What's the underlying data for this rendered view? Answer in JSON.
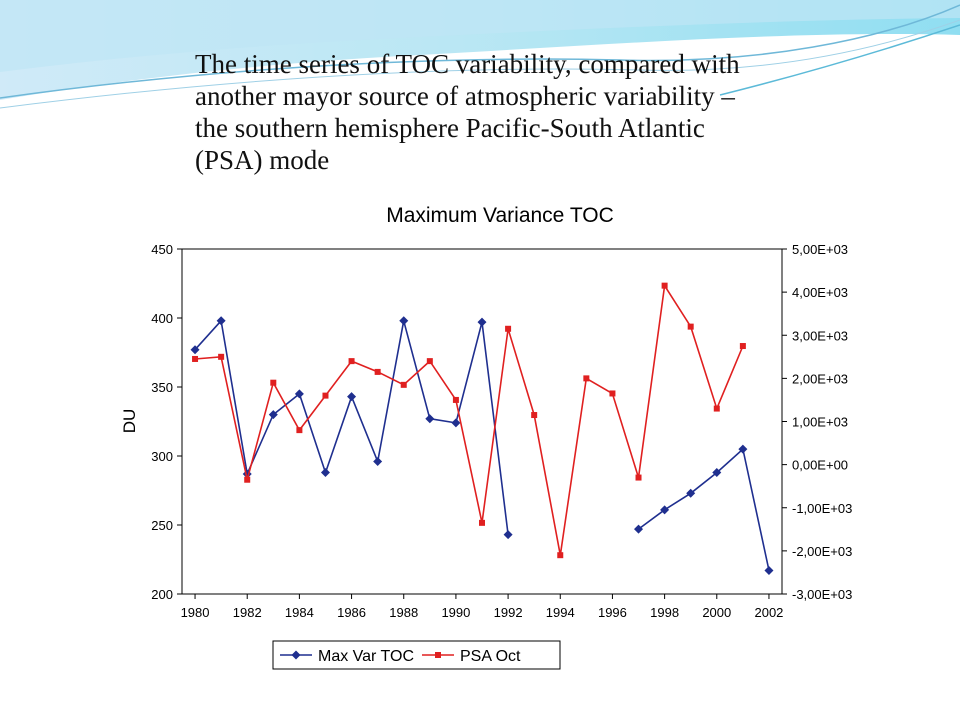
{
  "slide": {
    "heading_lines": [
      "The time series of TOC variability, compared with",
      "another mayor source of atmospheric variability –",
      "the southern hemisphere Pacific-South Atlantic",
      "(PSA) mode"
    ]
  },
  "chart_data": {
    "type": "line",
    "title": "Maximum Variance TOC",
    "ylabel": "DU",
    "y2label": "",
    "xlim": [
      1979.5,
      2002.5
    ],
    "ylim": [
      200,
      450
    ],
    "y2lim": [
      -3000,
      5000
    ],
    "x_ticks": [
      1980,
      1982,
      1984,
      1986,
      1988,
      1990,
      1992,
      1994,
      1996,
      1998,
      2000,
      2002
    ],
    "y_ticks": [
      200,
      250,
      300,
      350,
      400,
      450
    ],
    "y2_ticks": [
      -3000,
      -2000,
      -1000,
      0,
      1000,
      2000,
      3000,
      4000,
      5000
    ],
    "y2_tick_labels": [
      "-3,00E+03",
      "-2,00E+03",
      "-1,00E+03",
      "0,00E+00",
      "1,00E+03",
      "2,00E+03",
      "3,00E+03",
      "4,00E+03",
      "5,00E+03"
    ],
    "grid": false,
    "legend_position": "bottom",
    "series": [
      {
        "name": "Max Var TOC",
        "axis": "left",
        "color": "#1f2f8f",
        "marker": "diamond",
        "segments": [
          [
            [
              1980,
              377
            ],
            [
              1981,
              398
            ],
            [
              1982,
              287
            ],
            [
              1983,
              330
            ],
            [
              1984,
              345
            ],
            [
              1985,
              288
            ],
            [
              1986,
              343
            ],
            [
              1987,
              296
            ],
            [
              1988,
              398
            ],
            [
              1989,
              327
            ],
            [
              1990,
              324
            ],
            [
              1991,
              397
            ],
            [
              1992,
              243
            ]
          ],
          [
            [
              1997,
              247
            ],
            [
              1998,
              261
            ],
            [
              1999,
              273
            ],
            [
              2000,
              288
            ],
            [
              2001,
              305
            ],
            [
              2002,
              217
            ]
          ]
        ]
      },
      {
        "name": "PSA  Oct",
        "axis": "right",
        "color": "#e02020",
        "marker": "square",
        "segments": [
          [
            [
              1980,
              2450
            ],
            [
              1981,
              2500
            ],
            [
              1982,
              -350
            ],
            [
              1983,
              1900
            ],
            [
              1984,
              800
            ],
            [
              1985,
              1600
            ],
            [
              1986,
              2400
            ],
            [
              1987,
              2150
            ],
            [
              1988,
              1850
            ],
            [
              1989,
              2400
            ],
            [
              1990,
              1500
            ],
            [
              1991,
              -1350
            ],
            [
              1992,
              3150
            ],
            [
              1993,
              1150
            ],
            [
              1994,
              -2100
            ],
            [
              1995,
              2000
            ],
            [
              1996,
              1650
            ],
            [
              1997,
              -300
            ],
            [
              1998,
              4150
            ],
            [
              1999,
              3200
            ],
            [
              2000,
              1300
            ],
            [
              2001,
              2750
            ]
          ]
        ]
      }
    ]
  }
}
